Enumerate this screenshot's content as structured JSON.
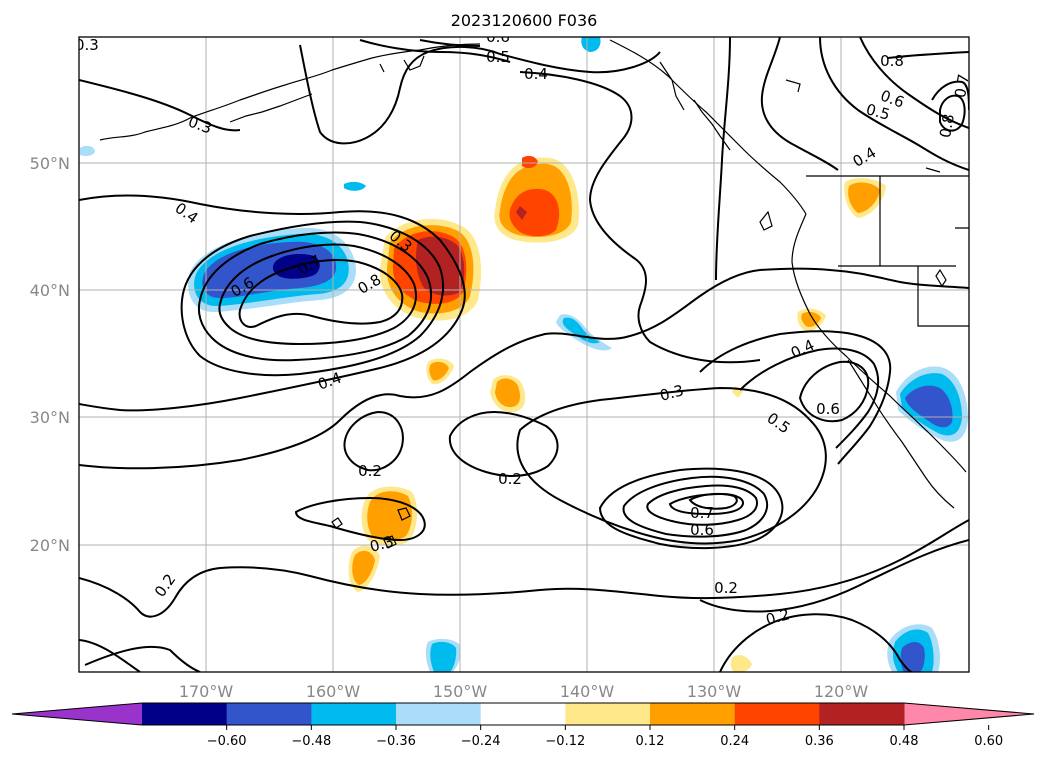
{
  "title": "2023120600 F036",
  "axes": {
    "lon_labels": [
      "170°W",
      "160°W",
      "150°W",
      "140°W",
      "130°W",
      "120°W"
    ],
    "lat_labels": [
      "20°N",
      "30°N",
      "40°N",
      "50°N"
    ]
  },
  "colorbar": {
    "tick_labels": [
      "−0.60",
      "−0.48",
      "−0.36",
      "−0.24",
      "−0.12",
      "0.12",
      "0.24",
      "0.36",
      "0.48",
      "0.60"
    ],
    "colors": [
      "#9933cc",
      "#000088",
      "#3355cc",
      "#00bbee",
      "#aaddf8",
      "#ffffff",
      "#ffe88a",
      "#ffa000",
      "#ff4400",
      "#b22222",
      "#ff88aa"
    ]
  },
  "contour_labels": [
    {
      "t": "0.3"
    },
    {
      "t": "0.6"
    },
    {
      "t": "0.5"
    },
    {
      "t": "0.4"
    },
    {
      "t": "0.3"
    },
    {
      "t": "0.8"
    },
    {
      "t": "0.6"
    },
    {
      "t": "0.5"
    },
    {
      "t": "0.7"
    },
    {
      "t": "0.8"
    },
    {
      "t": "0.4"
    },
    {
      "t": "0.4"
    },
    {
      "t": "0.3"
    },
    {
      "t": "0.7"
    },
    {
      "t": "0.6"
    },
    {
      "t": "0.8"
    },
    {
      "t": "0.4"
    },
    {
      "t": "0.4"
    },
    {
      "t": "0.3"
    },
    {
      "t": "0.5"
    },
    {
      "t": "0.6"
    },
    {
      "t": "0.2"
    },
    {
      "t": "0.2"
    },
    {
      "t": "0.7"
    },
    {
      "t": "0.6"
    },
    {
      "t": "0.3"
    },
    {
      "t": "0.2"
    },
    {
      "t": "0.2"
    },
    {
      "t": "0.2"
    }
  ]
}
